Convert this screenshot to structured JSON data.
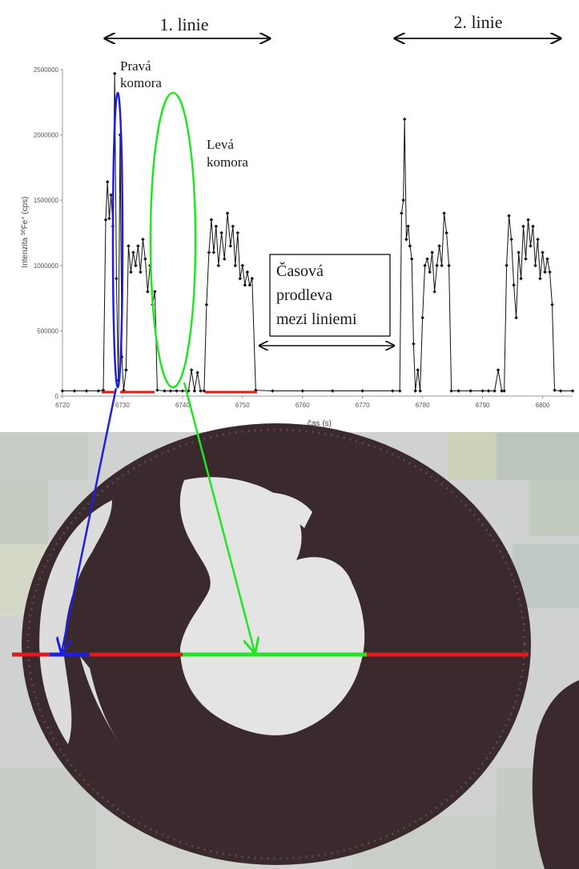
{
  "header": {
    "line1_label": "1. linie",
    "line2_label": "2. linie"
  },
  "annotations": {
    "right_ventricle": [
      "Pravá",
      "komora"
    ],
    "left_ventricle": [
      "Levá",
      "komora"
    ],
    "delay_box": [
      "Časová",
      "prodleva",
      "mezi liniemi"
    ]
  },
  "colors": {
    "trace": "#111111",
    "right_ventricle": "#1f1fe0",
    "left_ventricle": "#22e622",
    "ablation_line": "#e01a1a",
    "tissue": "#3a2a2e"
  },
  "chart_data": {
    "type": "line",
    "xlabel": "čas (s)",
    "ylabel_parts": [
      "Intenzita ",
      "56",
      "Fe",
      "+",
      " (cps)"
    ],
    "xlim": [
      6720,
      6805
    ],
    "ylim": [
      0,
      2500000
    ],
    "x_ticks": [
      6720,
      6730,
      6740,
      6750,
      6760,
      6770,
      6780,
      6790,
      6800
    ],
    "y_ticks": [
      0,
      500000,
      1000000,
      1500000,
      2000000,
      2500000
    ],
    "series": [
      {
        "points": [
          [
            6720,
            40000
          ],
          [
            6722,
            40000
          ],
          [
            6724,
            40000
          ],
          [
            6726,
            40000
          ],
          [
            6726.8,
            45000
          ],
          [
            6727.2,
            1350000
          ],
          [
            6727.5,
            1640000
          ],
          [
            6727.8,
            1360000
          ],
          [
            6728.1,
            1540000
          ],
          [
            6728.4,
            1300000
          ],
          [
            6728.7,
            2470000
          ],
          [
            6729.0,
            900000
          ],
          [
            6729.3,
            120000
          ],
          [
            6729.6,
            2000000
          ],
          [
            6729.9,
            300000
          ],
          [
            6730.2,
            45000
          ],
          [
            6730.6,
            200000
          ],
          [
            6731.0,
            1150000
          ],
          [
            6731.4,
            950000
          ],
          [
            6731.8,
            1100000
          ],
          [
            6732.2,
            1000000
          ],
          [
            6732.6,
            1150000
          ],
          [
            6733.0,
            950000
          ],
          [
            6733.4,
            1200000
          ],
          [
            6733.8,
            1050000
          ],
          [
            6734.2,
            800000
          ],
          [
            6734.6,
            1000000
          ],
          [
            6735.0,
            700000
          ],
          [
            6735.4,
            800000
          ],
          [
            6735.8,
            45000
          ],
          [
            6737,
            40000
          ],
          [
            6738,
            40000
          ],
          [
            6739,
            40000
          ],
          [
            6740,
            40000
          ],
          [
            6741,
            40000
          ],
          [
            6741.5,
            200000
          ],
          [
            6742.0,
            40000
          ],
          [
            6742.5,
            180000
          ],
          [
            6743.0,
            40000
          ],
          [
            6743.6,
            40000
          ],
          [
            6744.0,
            700000
          ],
          [
            6744.4,
            1100000
          ],
          [
            6744.8,
            1350000
          ],
          [
            6745.2,
            1100000
          ],
          [
            6745.6,
            1300000
          ],
          [
            6746.0,
            1000000
          ],
          [
            6746.5,
            1250000
          ],
          [
            6747.0,
            1050000
          ],
          [
            6747.5,
            1400000
          ],
          [
            6748.0,
            1150000
          ],
          [
            6748.4,
            1300000
          ],
          [
            6748.8,
            1000000
          ],
          [
            6749.2,
            1250000
          ],
          [
            6749.6,
            900000
          ],
          [
            6750.0,
            1000000
          ],
          [
            6750.4,
            850000
          ],
          [
            6750.8,
            950000
          ],
          [
            6751.2,
            850000
          ],
          [
            6751.6,
            900000
          ],
          [
            6752.2,
            45000
          ],
          [
            6755,
            40000
          ],
          [
            6760,
            40000
          ],
          [
            6765,
            40000
          ],
          [
            6770,
            40000
          ],
          [
            6775,
            40000
          ],
          [
            6776.2,
            40000
          ],
          [
            6776.5,
            1400000
          ],
          [
            6776.8,
            1500000
          ],
          [
            6777.0,
            2120000
          ],
          [
            6777.3,
            1200000
          ],
          [
            6777.6,
            1300000
          ],
          [
            6777.9,
            1150000
          ],
          [
            6778.2,
            1050000
          ],
          [
            6778.5,
            400000
          ],
          [
            6778.8,
            40000
          ],
          [
            6779.2,
            200000
          ],
          [
            6779.6,
            40000
          ],
          [
            6780.0,
            600000
          ],
          [
            6780.4,
            1000000
          ],
          [
            6780.8,
            1050000
          ],
          [
            6781.2,
            950000
          ],
          [
            6781.6,
            1100000
          ],
          [
            6782.0,
            800000
          ],
          [
            6782.4,
            1000000
          ],
          [
            6782.8,
            1150000
          ],
          [
            6783.2,
            1000000
          ],
          [
            6783.6,
            1400000
          ],
          [
            6784.0,
            1250000
          ],
          [
            6784.4,
            1000000
          ],
          [
            6784.8,
            40000
          ],
          [
            6786,
            40000
          ],
          [
            6788,
            40000
          ],
          [
            6790,
            40000
          ],
          [
            6791,
            40000
          ],
          [
            6792,
            40000
          ],
          [
            6792.6,
            200000
          ],
          [
            6793.2,
            40000
          ],
          [
            6793.6,
            40000
          ],
          [
            6794.0,
            1000000
          ],
          [
            6794.4,
            1380000
          ],
          [
            6794.8,
            1200000
          ],
          [
            6795.2,
            850000
          ],
          [
            6795.6,
            600000
          ],
          [
            6796.0,
            1100000
          ],
          [
            6796.4,
            900000
          ],
          [
            6796.8,
            1300000
          ],
          [
            6797.2,
            1050000
          ],
          [
            6797.6,
            1350000
          ],
          [
            6798.0,
            1150000
          ],
          [
            6798.4,
            1300000
          ],
          [
            6798.8,
            1000000
          ],
          [
            6799.2,
            1200000
          ],
          [
            6799.6,
            900000
          ],
          [
            6800.0,
            1100000
          ],
          [
            6800.4,
            950000
          ],
          [
            6800.8,
            1050000
          ],
          [
            6801.2,
            950000
          ],
          [
            6801.6,
            700000
          ],
          [
            6802.0,
            45000
          ],
          [
            6803,
            40000
          ],
          [
            6805,
            40000
          ]
        ]
      }
    ]
  }
}
